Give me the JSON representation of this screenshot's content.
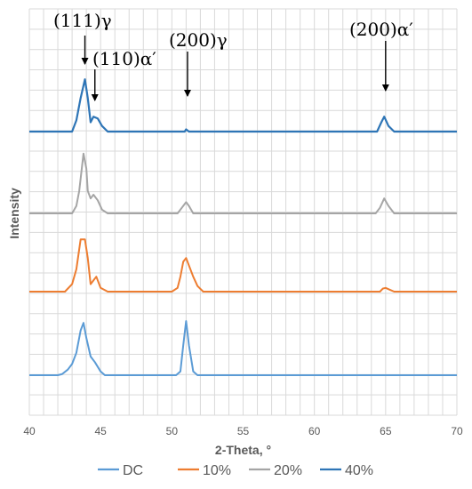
{
  "chart_data": {
    "type": "line",
    "xlabel": "2-Theta, °",
    "ylabel": "Intensity",
    "xlim": [
      40,
      70
    ],
    "x_ticks": [
      "40",
      "45",
      "50",
      "55",
      "60",
      "65",
      "70"
    ],
    "grid": "vertical and horizontal, light gray",
    "legend_position": "bottom",
    "y_axis": "stacked offsets, no tick labels",
    "series": [
      {
        "name": "DC",
        "color": "#5b9bd5",
        "points": [
          [
            40,
            0
          ],
          [
            42,
            0
          ],
          [
            42.3,
            0.3
          ],
          [
            42.7,
            1.5
          ],
          [
            43.0,
            3
          ],
          [
            43.3,
            6
          ],
          [
            43.6,
            12
          ],
          [
            43.8,
            14
          ],
          [
            44.0,
            10
          ],
          [
            44.3,
            5
          ],
          [
            44.6,
            3.5
          ],
          [
            45.0,
            1
          ],
          [
            45.3,
            0
          ],
          [
            50.3,
            0
          ],
          [
            50.6,
            1
          ],
          [
            50.8,
            8
          ],
          [
            51.0,
            14.5
          ],
          [
            51.2,
            8
          ],
          [
            51.5,
            1
          ],
          [
            51.8,
            0
          ],
          [
            70,
            0
          ]
        ]
      },
      {
        "name": "10%",
        "color": "#ed7d31",
        "points": [
          [
            40,
            0
          ],
          [
            42.5,
            0
          ],
          [
            43.0,
            2
          ],
          [
            43.3,
            6
          ],
          [
            43.6,
            14
          ],
          [
            43.9,
            14
          ],
          [
            44.1,
            9
          ],
          [
            44.3,
            2
          ],
          [
            44.5,
            3
          ],
          [
            44.7,
            4
          ],
          [
            45.0,
            1
          ],
          [
            45.5,
            0
          ],
          [
            50.0,
            0
          ],
          [
            50.4,
            1
          ],
          [
            50.6,
            4
          ],
          [
            50.8,
            8
          ],
          [
            51.0,
            9
          ],
          [
            51.2,
            7
          ],
          [
            51.5,
            4
          ],
          [
            51.8,
            1.5
          ],
          [
            52.2,
            0
          ],
          [
            64.6,
            0
          ],
          [
            64.8,
            0.8
          ],
          [
            65.0,
            1
          ],
          [
            65.3,
            0.5
          ],
          [
            65.6,
            0
          ],
          [
            70,
            0
          ]
        ]
      },
      {
        "name": "20%",
        "color": "#a5a5a5",
        "points": [
          [
            40,
            0
          ],
          [
            43.0,
            0
          ],
          [
            43.3,
            2
          ],
          [
            43.5,
            6
          ],
          [
            43.8,
            16
          ],
          [
            44.0,
            12
          ],
          [
            44.1,
            6
          ],
          [
            44.3,
            4
          ],
          [
            44.5,
            5
          ],
          [
            44.8,
            3.5
          ],
          [
            45.1,
            1
          ],
          [
            45.5,
            0
          ],
          [
            50.4,
            0
          ],
          [
            50.7,
            1.5
          ],
          [
            51.0,
            3
          ],
          [
            51.2,
            2
          ],
          [
            51.5,
            0
          ],
          [
            64.3,
            0
          ],
          [
            64.6,
            1.5
          ],
          [
            64.9,
            4
          ],
          [
            65.2,
            2
          ],
          [
            65.6,
            0
          ],
          [
            70,
            0
          ]
        ]
      },
      {
        "name": "40%",
        "color": "#2e75b6",
        "points": [
          [
            40,
            0
          ],
          [
            43.0,
            0
          ],
          [
            43.3,
            3
          ],
          [
            43.6,
            9
          ],
          [
            43.9,
            14
          ],
          [
            44.1,
            9
          ],
          [
            44.3,
            2.5
          ],
          [
            44.5,
            4
          ],
          [
            44.8,
            3.5
          ],
          [
            45.1,
            1.5
          ],
          [
            45.5,
            0
          ],
          [
            50.9,
            0
          ],
          [
            51.0,
            0.6
          ],
          [
            51.2,
            0
          ],
          [
            64.4,
            0
          ],
          [
            64.7,
            2.5
          ],
          [
            64.9,
            4
          ],
          [
            65.2,
            1.5
          ],
          [
            65.6,
            0
          ],
          [
            70,
            0
          ]
        ]
      }
    ],
    "annotations": [
      {
        "label": "(111)γ",
        "x": 43.9
      },
      {
        "label": "(110)α′",
        "x": 44.6
      },
      {
        "label": "(200)γ",
        "x": 51.1
      },
      {
        "label": "(200)α′",
        "x": 65.0
      }
    ]
  }
}
